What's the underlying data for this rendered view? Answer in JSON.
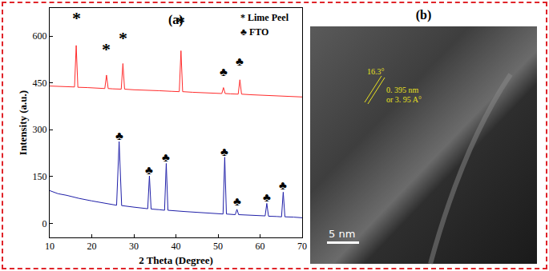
{
  "chart_data": {
    "type": "line",
    "panel_label": "(a)",
    "x_label": "2 Theta (Degree)",
    "y_label": "Intensity (a.u.)",
    "xlim": [
      10,
      70
    ],
    "xticks": [
      10,
      20,
      30,
      40,
      50,
      60,
      70
    ],
    "ylim": [
      -45,
      690
    ],
    "yticks": [
      0,
      150,
      300,
      450,
      600
    ],
    "grid": false,
    "series": [
      {
        "name": "Lime Peel",
        "color": "#ff2a2a",
        "x": [
          10,
          12,
          14,
          15.9,
          16.3,
          16.7,
          19,
          21,
          23.1,
          23.5,
          23.9,
          25,
          27.0,
          27.4,
          27.8,
          30,
          33,
          36,
          39,
          40.8,
          41.2,
          41.6,
          44,
          47,
          50.9,
          51.3,
          51.7,
          53,
          54.8,
          55.2,
          55.6,
          58,
          62,
          66,
          70
        ],
        "values": [
          440,
          439,
          438,
          437,
          570,
          436,
          435,
          434,
          432,
          475,
          432,
          431,
          430,
          512,
          430,
          428,
          427,
          425,
          423,
          422,
          553,
          422,
          420,
          418,
          416,
          435,
          416,
          415,
          414,
          460,
          414,
          412,
          410,
          408,
          405
        ]
      },
      {
        "name": "FTO",
        "color": "#1f1fa8",
        "x": [
          10,
          12,
          14,
          17,
          20,
          23,
          25.9,
          26.5,
          27.1,
          30,
          33.3,
          33.7,
          34.1,
          36,
          37.3,
          37.7,
          38.1,
          42,
          46,
          51.2,
          51.6,
          52,
          54.1,
          54.5,
          54.9,
          58,
          61.2,
          61.6,
          62,
          64,
          65.1,
          65.5,
          65.9,
          68,
          70
        ],
        "values": [
          105,
          95,
          90,
          80,
          72,
          65,
          58,
          262,
          57,
          52,
          47,
          152,
          46,
          44,
          42,
          192,
          42,
          38,
          34,
          30,
          212,
          30,
          28,
          45,
          28,
          26,
          24,
          64,
          23,
          22,
          21,
          100,
          21,
          20,
          18
        ]
      }
    ],
    "annotations": [
      {
        "text": "*",
        "x": 16.3,
        "y": 658
      },
      {
        "text": "*",
        "x": 23.5,
        "y": 557
      },
      {
        "text": "*",
        "x": 27.4,
        "y": 595
      },
      {
        "text": "*",
        "x": 41.2,
        "y": 646
      },
      {
        "text": "♣",
        "x": 51.3,
        "y": 485
      },
      {
        "text": "♣",
        "x": 55.2,
        "y": 519
      },
      {
        "text": "♣",
        "x": 26.5,
        "y": 280
      },
      {
        "text": "♣",
        "x": 33.7,
        "y": 170
      },
      {
        "text": "♣",
        "x": 37.7,
        "y": 211
      },
      {
        "text": "♣",
        "x": 51.6,
        "y": 229
      },
      {
        "text": "♣",
        "x": 54.5,
        "y": 71
      },
      {
        "text": "♣",
        "x": 61.6,
        "y": 84
      },
      {
        "text": "♣",
        "x": 65.5,
        "y": 122
      }
    ],
    "key": [
      {
        "symbol": "*",
        "text": "Lime Peel",
        "x": 55,
        "y": 659
      },
      {
        "symbol": "♣",
        "text": "FTO",
        "x": 55,
        "y": 612
      }
    ]
  },
  "image_panel": {
    "panel_label": "(b)",
    "angle_label": "16.3°",
    "spacing_label": [
      "0. 395 nm",
      "or 3. 95 A°"
    ],
    "scale_bar": "5 nm"
  }
}
